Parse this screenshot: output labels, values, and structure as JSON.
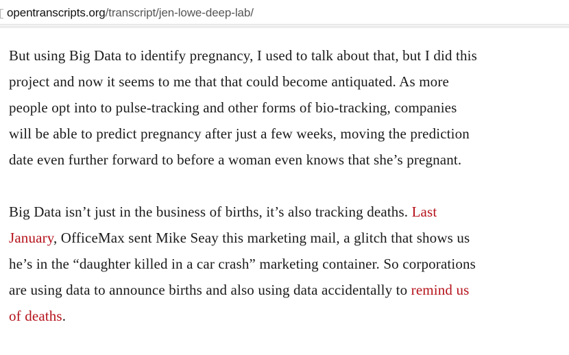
{
  "browser": {
    "url_host": "opentranscripts.org",
    "url_path": "/transcript/jen-lowe-deep-lab/"
  },
  "colors": {
    "link": "#b5121b",
    "text": "#1a1a1a"
  },
  "article": {
    "paragraph1": {
      "line1": "But using Big Data to identify pregnancy, I used to talk about that, but I did this",
      "line2": "project and now it seems to me that that could become antiquated. As more",
      "line3": "people opt into to pulse-tracking and other forms of bio-tracking, companies",
      "line4": "will be able to predict pregnancy after just a few weeks, moving the prediction",
      "line5": "date even further forward to before a woman even knows that she’s pregnant."
    },
    "paragraph2": {
      "line1_text": "Big Data isn’t just in the business of births, it’s also tracking deaths. ",
      "line1_link": "Last",
      "line2_link": "January",
      "line2_text": ", OfficeMax sent Mike Seay this marketing mail, a glitch that shows us",
      "line3": "he’s in the “daughter killed in a car crash” marketing container. So corporations",
      "line4_text": "are using data to announce births and also using data accidentally to ",
      "line4_link": "remind us",
      "line5_link": "of deaths",
      "line5_text": "."
    }
  }
}
